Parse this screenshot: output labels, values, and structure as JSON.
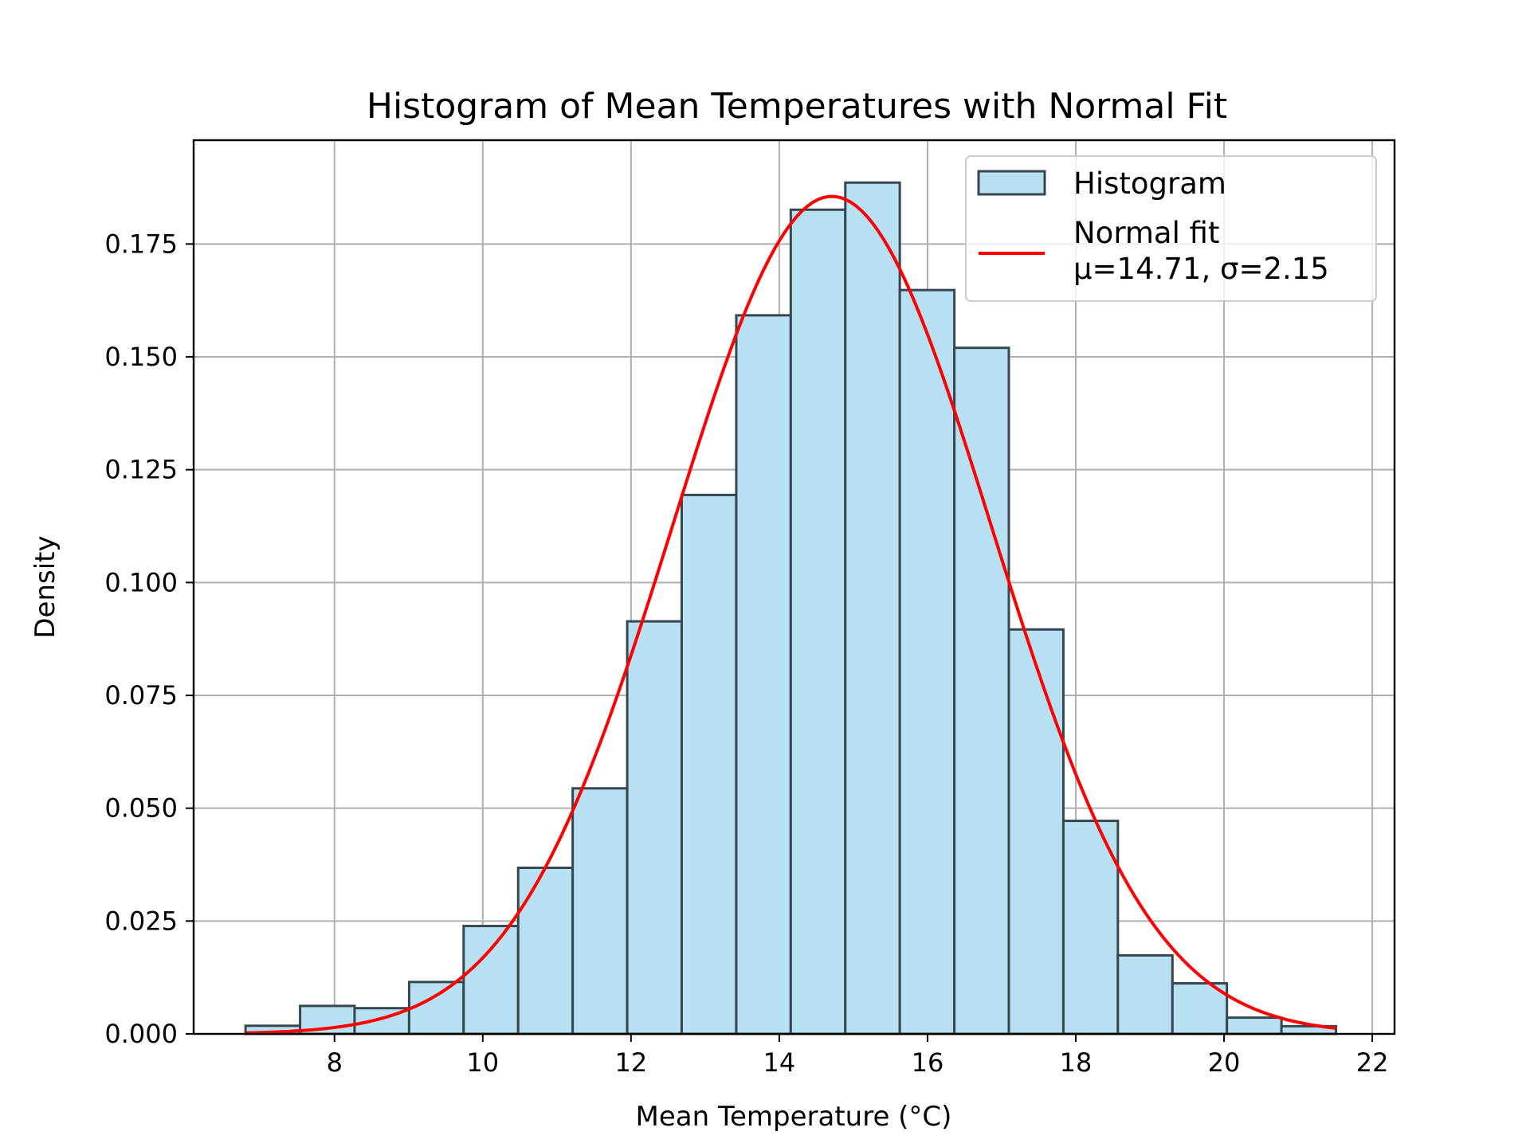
{
  "chart_data": {
    "type": "bar",
    "title": "Histogram of Mean Temperatures with Normal Fit",
    "xlabel": "Mean Temperature (°C)",
    "ylabel": "Density",
    "xlim": [
      6.1,
      22.3
    ],
    "ylim": [
      0,
      0.198
    ],
    "x_ticks": [
      8,
      10,
      12,
      14,
      16,
      18,
      20,
      22
    ],
    "y_ticks": [
      0,
      0.025,
      0.05,
      0.075,
      0.1,
      0.125,
      0.15,
      0.175
    ],
    "x_tick_labels": [
      "8",
      "10",
      "12",
      "14",
      "16",
      "18",
      "20",
      "22"
    ],
    "y_tick_labels": [
      "0.000",
      "0.025",
      "0.050",
      "0.075",
      "0.100",
      "0.125",
      "0.150",
      "0.175"
    ],
    "grid": true,
    "legend_position": "top-right",
    "histogram": {
      "name": "Histogram",
      "color": "#b7e0f2",
      "edge_color": "#37474f",
      "bin_edges": [
        6.8,
        7.536,
        8.271,
        9.007,
        9.742,
        10.478,
        11.213,
        11.949,
        12.684,
        13.42,
        14.155,
        14.891,
        15.626,
        16.362,
        17.097,
        17.833,
        18.568,
        19.304,
        20.039,
        20.775,
        21.51
      ],
      "values": [
        0.0018,
        0.0062,
        0.0057,
        0.0115,
        0.0239,
        0.0368,
        0.0544,
        0.0914,
        0.1194,
        0.1592,
        0.1826,
        0.1886,
        0.1648,
        0.152,
        0.0896,
        0.0472,
        0.0174,
        0.0112,
        0.0036,
        0.0017
      ]
    },
    "normal_fit": {
      "name_line1": "Normal fit",
      "name_line2": "μ=14.71, σ=2.15",
      "mu": 14.71,
      "sigma": 2.15,
      "x_range": [
        6.8,
        21.51
      ],
      "color": "#ff0000"
    }
  }
}
